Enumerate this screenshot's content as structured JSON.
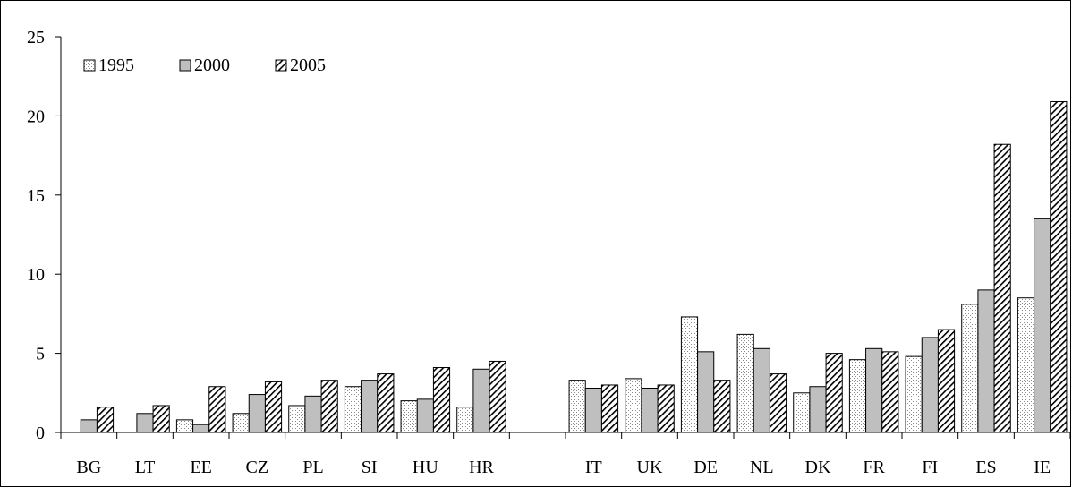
{
  "chart_data": {
    "type": "bar",
    "categories": [
      "BG",
      "LT",
      "EE",
      "CZ",
      "PL",
      "SI",
      "HU",
      "HR",
      "",
      "IT",
      "UK",
      "DE",
      "NL",
      "DK",
      "FR",
      "FI",
      "ES",
      "IE"
    ],
    "series": [
      {
        "name": "1995",
        "pattern": "dotted",
        "values": [
          null,
          null,
          0.8,
          1.2,
          1.7,
          2.9,
          2.0,
          1.6,
          null,
          3.3,
          3.4,
          7.3,
          6.2,
          2.5,
          4.6,
          4.8,
          8.1,
          8.5
        ]
      },
      {
        "name": "2000",
        "pattern": "gray",
        "values": [
          0.8,
          1.2,
          0.5,
          2.4,
          2.3,
          3.3,
          2.1,
          4.0,
          null,
          2.8,
          2.8,
          5.1,
          5.3,
          2.9,
          5.3,
          6.0,
          9.0,
          13.5
        ]
      },
      {
        "name": "2005",
        "pattern": "hatched",
        "values": [
          1.6,
          1.7,
          2.9,
          3.2,
          3.3,
          3.7,
          4.1,
          4.5,
          null,
          3.0,
          3.0,
          3.3,
          3.7,
          5.0,
          5.1,
          6.5,
          18.2,
          20.9
        ]
      }
    ],
    "ylim": [
      0,
      25
    ],
    "yticks": [
      0,
      5,
      10,
      15,
      20,
      25
    ],
    "title": "",
    "xlabel": "",
    "ylabel": "",
    "legend_position": "top-left",
    "grid": false,
    "colors": {
      "gray_fill": "#bfbfbf",
      "dot_color": "#909090",
      "hatch_color": "#000000",
      "outline": "#000000"
    }
  }
}
